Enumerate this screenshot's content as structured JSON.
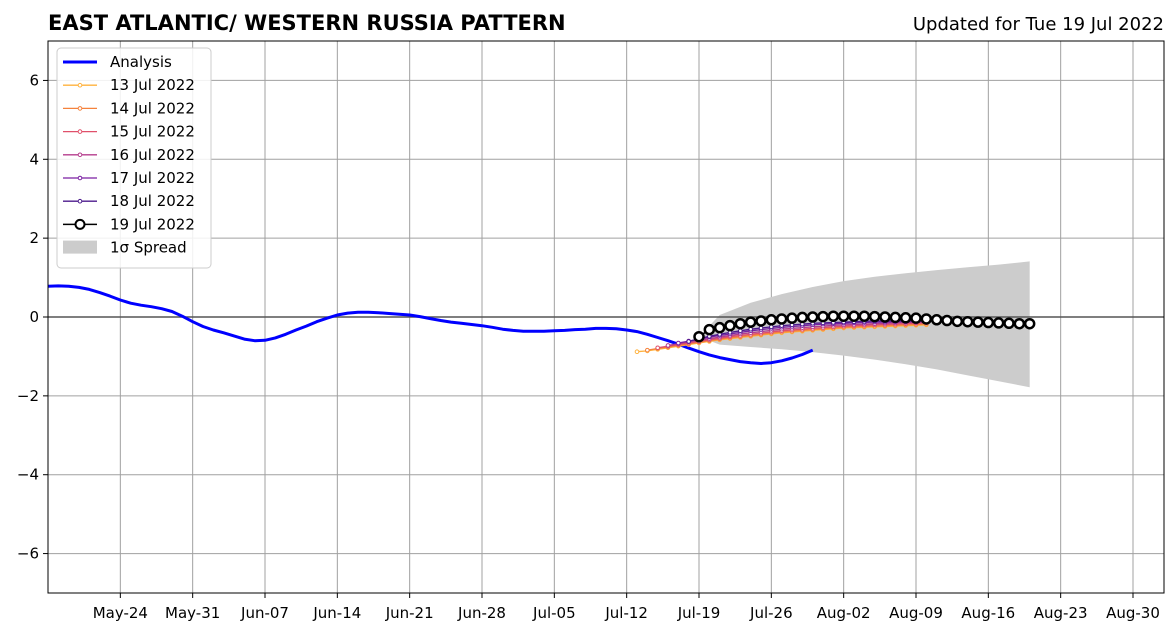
{
  "header": {
    "title": "EAST ATLANTIC/ WESTERN RUSSIA PATTERN",
    "updated": "Updated for Tue 19 Jul 2022"
  },
  "chart_data": {
    "type": "line",
    "xlim": [
      "2022-05-17",
      "2022-09-02"
    ],
    "ylim": [
      -7,
      7
    ],
    "grid": true,
    "legend_position": "top-left",
    "x_ticks": [
      "2022-05-24",
      "2022-05-31",
      "2022-06-07",
      "2022-06-14",
      "2022-06-21",
      "2022-06-28",
      "2022-07-05",
      "2022-07-12",
      "2022-07-19",
      "2022-07-26",
      "2022-08-02",
      "2022-08-09",
      "2022-08-16",
      "2022-08-23",
      "2022-08-30"
    ],
    "x_tick_labels": [
      "May-24",
      "May-31",
      "Jun-07",
      "Jun-14",
      "Jun-21",
      "Jun-28",
      "Jul-05",
      "Jul-12",
      "Jul-19",
      "Jul-26",
      "Aug-02",
      "Aug-09",
      "Aug-16",
      "Aug-23",
      "Aug-30"
    ],
    "y_ticks": [
      -6,
      -4,
      -2,
      0,
      2,
      4,
      6
    ],
    "y_tick_labels": [
      "−6",
      "−4",
      "−2",
      "0",
      "2",
      "4",
      "6"
    ],
    "analysis": {
      "name": "Analysis",
      "color": "#0000ff",
      "points": [
        [
          "2022-05-17",
          0.78
        ],
        [
          "2022-05-18",
          0.79
        ],
        [
          "2022-05-19",
          0.78
        ],
        [
          "2022-05-20",
          0.75
        ],
        [
          "2022-05-21",
          0.7
        ],
        [
          "2022-05-22",
          0.62
        ],
        [
          "2022-05-23",
          0.53
        ],
        [
          "2022-05-24",
          0.43
        ],
        [
          "2022-05-25",
          0.35
        ],
        [
          "2022-05-26",
          0.3
        ],
        [
          "2022-05-27",
          0.26
        ],
        [
          "2022-05-28",
          0.21
        ],
        [
          "2022-05-29",
          0.14
        ],
        [
          "2022-05-30",
          0.02
        ],
        [
          "2022-05-31",
          -0.12
        ],
        [
          "2022-06-01",
          -0.24
        ],
        [
          "2022-06-02",
          -0.33
        ],
        [
          "2022-06-03",
          -0.4
        ],
        [
          "2022-06-04",
          -0.48
        ],
        [
          "2022-06-05",
          -0.56
        ],
        [
          "2022-06-06",
          -0.6
        ],
        [
          "2022-06-07",
          -0.59
        ],
        [
          "2022-06-08",
          -0.53
        ],
        [
          "2022-06-09",
          -0.44
        ],
        [
          "2022-06-10",
          -0.33
        ],
        [
          "2022-06-11",
          -0.23
        ],
        [
          "2022-06-12",
          -0.12
        ],
        [
          "2022-06-13",
          -0.03
        ],
        [
          "2022-06-14",
          0.05
        ],
        [
          "2022-06-15",
          0.1
        ],
        [
          "2022-06-16",
          0.12
        ],
        [
          "2022-06-17",
          0.12
        ],
        [
          "2022-06-18",
          0.11
        ],
        [
          "2022-06-19",
          0.09
        ],
        [
          "2022-06-20",
          0.07
        ],
        [
          "2022-06-21",
          0.05
        ],
        [
          "2022-06-22",
          0.01
        ],
        [
          "2022-06-23",
          -0.04
        ],
        [
          "2022-06-24",
          -0.09
        ],
        [
          "2022-06-25",
          -0.13
        ],
        [
          "2022-06-26",
          -0.16
        ],
        [
          "2022-06-27",
          -0.19
        ],
        [
          "2022-06-28",
          -0.22
        ],
        [
          "2022-06-29",
          -0.26
        ],
        [
          "2022-06-30",
          -0.31
        ],
        [
          "2022-07-01",
          -0.34
        ],
        [
          "2022-07-02",
          -0.36
        ],
        [
          "2022-07-03",
          -0.36
        ],
        [
          "2022-07-04",
          -0.36
        ],
        [
          "2022-07-05",
          -0.35
        ],
        [
          "2022-07-06",
          -0.34
        ],
        [
          "2022-07-07",
          -0.32
        ],
        [
          "2022-07-08",
          -0.31
        ],
        [
          "2022-07-09",
          -0.29
        ],
        [
          "2022-07-10",
          -0.29
        ],
        [
          "2022-07-11",
          -0.3
        ],
        [
          "2022-07-12",
          -0.33
        ],
        [
          "2022-07-13",
          -0.37
        ],
        [
          "2022-07-14",
          -0.44
        ],
        [
          "2022-07-15",
          -0.52
        ],
        [
          "2022-07-16",
          -0.6
        ],
        [
          "2022-07-17",
          -0.69
        ],
        [
          "2022-07-18",
          -0.79
        ],
        [
          "2022-07-19",
          -0.88
        ],
        [
          "2022-07-20",
          -0.96
        ],
        [
          "2022-07-21",
          -1.03
        ],
        [
          "2022-07-22",
          -1.08
        ],
        [
          "2022-07-23",
          -1.13
        ],
        [
          "2022-07-24",
          -1.16
        ],
        [
          "2022-07-25",
          -1.18
        ],
        [
          "2022-07-26",
          -1.16
        ],
        [
          "2022-07-27",
          -1.11
        ],
        [
          "2022-07-28",
          -1.04
        ],
        [
          "2022-07-29",
          -0.95
        ],
        [
          "2022-07-30",
          -0.84
        ]
      ]
    },
    "forecasts": [
      {
        "name": "13 Jul 2022",
        "color": "#ffb23d",
        "start": "2022-07-13",
        "values": [
          -0.88,
          -0.86,
          -0.82,
          -0.78,
          -0.74,
          -0.7,
          -0.66,
          -0.62,
          -0.58,
          -0.55,
          -0.52,
          -0.49,
          -0.46,
          -0.43,
          -0.4,
          -0.38,
          -0.36,
          -0.34,
          -0.32,
          -0.3,
          -0.28,
          -0.27,
          -0.26,
          -0.25,
          -0.24,
          -0.23,
          -0.22,
          -0.21,
          -0.2
        ]
      },
      {
        "name": "14 Jul 2022",
        "color": "#f5823c",
        "start": "2022-07-14",
        "values": [
          -0.84,
          -0.8,
          -0.76,
          -0.72,
          -0.68,
          -0.64,
          -0.6,
          -0.56,
          -0.53,
          -0.5,
          -0.47,
          -0.44,
          -0.41,
          -0.38,
          -0.36,
          -0.34,
          -0.32,
          -0.3,
          -0.28,
          -0.26,
          -0.25,
          -0.24,
          -0.23,
          -0.22,
          -0.21,
          -0.2,
          -0.19,
          -0.18
        ]
      },
      {
        "name": "15 Jul 2022",
        "color": "#e0506a",
        "start": "2022-07-15",
        "values": [
          -0.78,
          -0.74,
          -0.7,
          -0.66,
          -0.62,
          -0.58,
          -0.54,
          -0.5,
          -0.47,
          -0.44,
          -0.41,
          -0.38,
          -0.35,
          -0.33,
          -0.31,
          -0.29,
          -0.27,
          -0.25,
          -0.23,
          -0.22,
          -0.21,
          -0.2,
          -0.19,
          -0.18,
          -0.17,
          -0.16,
          -0.15
        ]
      },
      {
        "name": "16 Jul 2022",
        "color": "#b43c8c",
        "start": "2022-07-16",
        "values": [
          -0.72,
          -0.68,
          -0.63,
          -0.59,
          -0.55,
          -0.51,
          -0.47,
          -0.43,
          -0.4,
          -0.37,
          -0.34,
          -0.31,
          -0.29,
          -0.27,
          -0.25,
          -0.23,
          -0.21,
          -0.2,
          -0.19,
          -0.18,
          -0.17,
          -0.16,
          -0.15,
          -0.14,
          -0.14,
          -0.13
        ]
      },
      {
        "name": "17 Jul 2022",
        "color": "#7a1fa2",
        "start": "2022-07-17",
        "values": [
          -0.66,
          -0.61,
          -0.56,
          -0.51,
          -0.47,
          -0.43,
          -0.39,
          -0.35,
          -0.32,
          -0.29,
          -0.26,
          -0.24,
          -0.22,
          -0.2,
          -0.18,
          -0.17,
          -0.16,
          -0.15,
          -0.14,
          -0.13,
          -0.13,
          -0.12,
          -0.12,
          -0.11,
          -0.11
        ]
      },
      {
        "name": "18 Jul 2022",
        "color": "#4b1a8c",
        "start": "2022-07-18",
        "values": [
          -0.62,
          -0.55,
          -0.49,
          -0.44,
          -0.39,
          -0.35,
          -0.31,
          -0.28,
          -0.25,
          -0.22,
          -0.2,
          -0.18,
          -0.16,
          -0.15,
          -0.14,
          -0.13,
          -0.12,
          -0.11,
          -0.1,
          -0.1,
          -0.1,
          -0.09,
          -0.09,
          -0.09
        ]
      }
    ],
    "latest": {
      "name": "19 Jul 2022",
      "color": "#000000",
      "start": "2022-07-19",
      "values": [
        -0.5,
        -0.32,
        -0.27,
        -0.22,
        -0.17,
        -0.13,
        -0.1,
        -0.07,
        -0.05,
        -0.03,
        -0.01,
        0.0,
        0.01,
        0.02,
        0.02,
        0.02,
        0.02,
        0.01,
        0.0,
        -0.01,
        -0.02,
        -0.03,
        -0.05,
        -0.07,
        -0.09,
        -0.11,
        -0.12,
        -0.13,
        -0.14,
        -0.15,
        -0.16,
        -0.17,
        -0.17
      ]
    },
    "spread": {
      "name": "1σ Spread",
      "color": "#cccccc",
      "points": [
        [
          "2022-07-19",
          -0.5,
          -0.5
        ],
        [
          "2022-07-21",
          -0.7,
          0.05
        ],
        [
          "2022-07-24",
          -0.76,
          0.36
        ],
        [
          "2022-07-27",
          -0.82,
          0.58
        ],
        [
          "2022-07-30",
          -0.89,
          0.76
        ],
        [
          "2022-08-02",
          -0.98,
          0.91
        ],
        [
          "2022-08-05",
          -1.08,
          1.02
        ],
        [
          "2022-08-08",
          -1.2,
          1.11
        ],
        [
          "2022-08-11",
          -1.33,
          1.19
        ],
        [
          "2022-08-14",
          -1.48,
          1.26
        ],
        [
          "2022-08-17",
          -1.63,
          1.33
        ],
        [
          "2022-08-20",
          -1.78,
          1.41
        ]
      ]
    },
    "zero_line_color": "#555555",
    "grid_color": "#a0a0a0"
  }
}
